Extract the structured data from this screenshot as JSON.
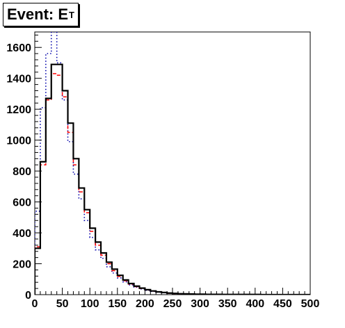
{
  "chart_data": {
    "type": "bar",
    "title": "Event: E",
    "title_subscript": "T",
    "xlim": [
      0,
      500
    ],
    "ylim": [
      0,
      1700
    ],
    "x_ticks": [
      0,
      50,
      100,
      150,
      200,
      250,
      300,
      350,
      400,
      450,
      500
    ],
    "y_ticks": [
      0,
      200,
      400,
      600,
      800,
      1000,
      1200,
      1400,
      1600
    ],
    "grid": false,
    "legend": "none",
    "bin_width": 10,
    "bin_starts": [
      0,
      10,
      20,
      30,
      40,
      50,
      60,
      70,
      80,
      90,
      100,
      110,
      120,
      130,
      140,
      150,
      160,
      170,
      180,
      190,
      200,
      210,
      220,
      230,
      240,
      250,
      260,
      270,
      280,
      290,
      300,
      310,
      320,
      330,
      340,
      350,
      360,
      370,
      380,
      390,
      400,
      410,
      420,
      430,
      440,
      450,
      460,
      470,
      480,
      490
    ],
    "series": [
      {
        "style": "solid",
        "color": "#000000",
        "values": [
          300,
          860,
          1270,
          1490,
          1490,
          1320,
          1110,
          880,
          690,
          550,
          430,
          340,
          270,
          210,
          165,
          125,
          95,
          72,
          55,
          42,
          32,
          24,
          18,
          14,
          10,
          8,
          6,
          5,
          4,
          3,
          3,
          2,
          2,
          2,
          1,
          1,
          1,
          1,
          1,
          1,
          1,
          0,
          0,
          0,
          0,
          0,
          0,
          0,
          0,
          0
        ]
      },
      {
        "style": "dashed",
        "color": "#ff0000",
        "values": [
          310,
          840,
          1260,
          1430,
          1420,
          1280,
          1050,
          840,
          665,
          530,
          410,
          320,
          255,
          200,
          155,
          118,
          90,
          68,
          52,
          40,
          30,
          23,
          17,
          13,
          9,
          7,
          5,
          4,
          3,
          3,
          2,
          2,
          2,
          1,
          1,
          1,
          1,
          1,
          1,
          1,
          0,
          0,
          0,
          0,
          0,
          0,
          0,
          0,
          0,
          0
        ]
      },
      {
        "style": "dotted",
        "color": "#0000aa",
        "values": [
          540,
          1210,
          1560,
          1700,
          1500,
          1260,
          990,
          780,
          620,
          480,
          370,
          290,
          235,
          180,
          140,
          108,
          83,
          63,
          48,
          37,
          28,
          21,
          16,
          12,
          9,
          7,
          5,
          4,
          3,
          3,
          2,
          2,
          2,
          1,
          1,
          1,
          1,
          1,
          1,
          1,
          1,
          0,
          0,
          0,
          0,
          0,
          0,
          0,
          0,
          0
        ]
      }
    ]
  }
}
